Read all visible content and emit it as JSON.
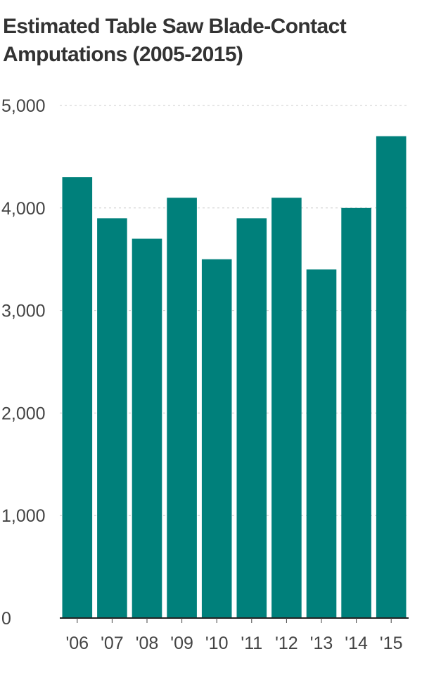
{
  "chart_data": {
    "type": "bar",
    "title": "Estimated Table Saw Blade-Contact Amputations (2005-2015)",
    "categories": [
      "'06",
      "'07",
      "'08",
      "'09",
      "'10",
      "'11",
      "'12",
      "'13",
      "'14",
      "'15"
    ],
    "values": [
      4300,
      3900,
      3700,
      4100,
      3500,
      3900,
      4100,
      3400,
      4000,
      4700
    ],
    "xlabel": "",
    "ylabel": "",
    "ylim": [
      0,
      5000
    ],
    "yticks": [
      "0",
      "1,000",
      "2,000",
      "3,000",
      "4,000",
      "5,000"
    ],
    "grid": true,
    "bar_color": "#00807b"
  }
}
